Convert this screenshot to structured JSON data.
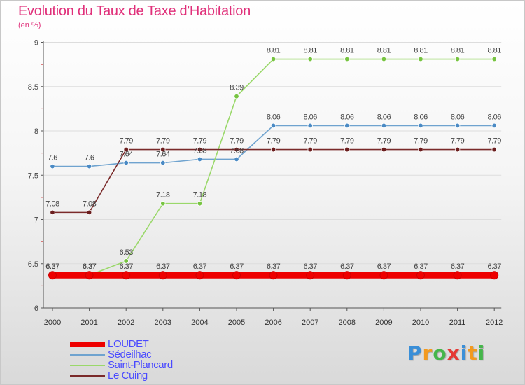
{
  "title": "Evolution du Taux de Taxe d'Habitation",
  "subtitle": "(en %)",
  "logo_text": "Proxiti",
  "chart_data": {
    "type": "line",
    "title": "Evolution du Taux de Taxe d'Habitation",
    "ylabel": "(en %)",
    "xlabel": "",
    "ylim": [
      6,
      9
    ],
    "yticks": [
      "6",
      "6.5",
      "7",
      "7.5",
      "8",
      "8.5",
      "9"
    ],
    "categories": [
      "2000",
      "2001",
      "2002",
      "2003",
      "2004",
      "2005",
      "2006",
      "2007",
      "2008",
      "2009",
      "2010",
      "2011",
      "2012"
    ],
    "series": [
      {
        "name": "LOUDET",
        "color": "#ee0000",
        "bold": true,
        "values": [
          6.37,
          6.37,
          6.37,
          6.37,
          6.37,
          6.37,
          6.37,
          6.37,
          6.37,
          6.37,
          6.37,
          6.37,
          6.37
        ],
        "labels": [
          "6.37",
          "6.37",
          "6.37",
          "6.37",
          "6.37",
          "6.37",
          "6.37",
          "6.37",
          "6.37",
          "6.37",
          "6.37",
          "6.37",
          "6.37"
        ]
      },
      {
        "name": "Sédeilhac",
        "color": "#6fa3cf",
        "marker": "#4a8ac4",
        "values": [
          7.6,
          7.6,
          7.64,
          7.64,
          7.68,
          7.68,
          8.06,
          8.06,
          8.06,
          8.06,
          8.06,
          8.06,
          8.06
        ],
        "labels": [
          "7.6",
          "7.6",
          "7.64",
          "7.64",
          "7.68",
          "7.68",
          "8.06",
          "8.06",
          "8.06",
          "8.06",
          "8.06",
          "8.06",
          "8.06"
        ]
      },
      {
        "name": "Saint-Plancard",
        "color": "#9ad86a",
        "marker": "#77c441",
        "values": [
          6.37,
          6.37,
          6.53,
          7.18,
          7.18,
          8.39,
          8.81,
          8.81,
          8.81,
          8.81,
          8.81,
          8.81,
          8.81
        ],
        "labels": [
          "6.37",
          "6.37",
          "6.53",
          "7.18",
          "7.18",
          "8.39",
          "8.81",
          "8.81",
          "8.81",
          "8.81",
          "8.81",
          "8.81",
          "8.81"
        ]
      },
      {
        "name": "Le Cuing",
        "color": "#7a2a2a",
        "marker": "#6b1e1e",
        "values": [
          7.08,
          7.08,
          7.79,
          7.79,
          7.79,
          7.79,
          7.79,
          7.79,
          7.79,
          7.79,
          7.79,
          7.79,
          7.79
        ],
        "labels": [
          "7.08",
          "7.08",
          "7.79",
          "7.79",
          "7.79",
          "7.79",
          "7.79",
          "7.79",
          "7.79",
          "7.79",
          "7.79",
          "7.79",
          "7.79"
        ]
      }
    ],
    "legend": "bottom-left"
  }
}
